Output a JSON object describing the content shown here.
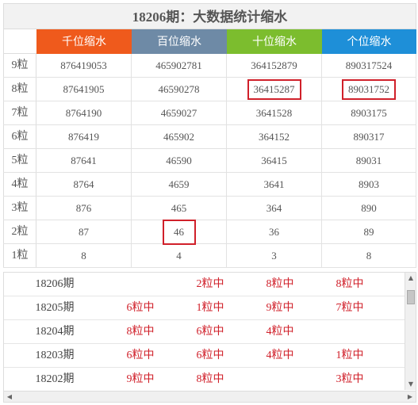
{
  "title": "18206期：大数据统计缩水",
  "headers": [
    {
      "label": "千位缩水",
      "color": "#ef5a1c"
    },
    {
      "label": "百位缩水",
      "color": "#6e8aa6"
    },
    {
      "label": "十位缩水",
      "color": "#7cbd2e"
    },
    {
      "label": "个位缩水",
      "color": "#1e8fd8"
    }
  ],
  "rows": [
    {
      "label": "9粒",
      "cells": [
        "876419053",
        "465902781",
        "364152879",
        "890317524"
      ]
    },
    {
      "label": "8粒",
      "cells": [
        "87641905",
        "46590278",
        "36415287",
        "89031752"
      ]
    },
    {
      "label": "7粒",
      "cells": [
        "8764190",
        "4659027",
        "3641528",
        "8903175"
      ]
    },
    {
      "label": "6粒",
      "cells": [
        "876419",
        "465902",
        "364152",
        "890317"
      ]
    },
    {
      "label": "5粒",
      "cells": [
        "87641",
        "46590",
        "36415",
        "89031"
      ]
    },
    {
      "label": "4粒",
      "cells": [
        "8764",
        "4659",
        "3641",
        "8903"
      ]
    },
    {
      "label": "3粒",
      "cells": [
        "876",
        "465",
        "364",
        "890"
      ]
    },
    {
      "label": "2粒",
      "cells": [
        "87",
        "46",
        "36",
        "89"
      ]
    },
    {
      "label": "1粒",
      "cells": [
        "8",
        "4",
        "3",
        "8"
      ]
    }
  ],
  "highlight_color": "#d0202a",
  "history": [
    {
      "period": "18206期",
      "results": [
        "",
        "2粒中",
        "8粒中",
        "8粒中"
      ]
    },
    {
      "period": "18205期",
      "results": [
        "6粒中",
        "1粒中",
        "9粒中",
        "7粒中"
      ]
    },
    {
      "period": "18204期",
      "results": [
        "8粒中",
        "6粒中",
        "4粒中",
        ""
      ]
    },
    {
      "period": "18203期",
      "results": [
        "6粒中",
        "6粒中",
        "4粒中",
        "1粒中"
      ]
    },
    {
      "period": "18202期",
      "results": [
        "9粒中",
        "8粒中",
        "",
        "3粒中"
      ]
    }
  ],
  "icons": {
    "scroll_up": "▲",
    "scroll_down": "▼",
    "scroll_left": "◀",
    "scroll_right": "▶"
  }
}
